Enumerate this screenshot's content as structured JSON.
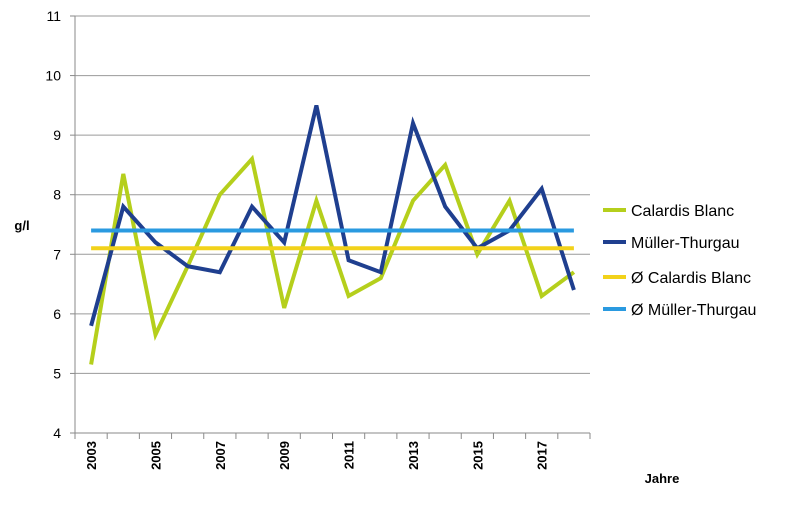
{
  "chart_data": {
    "type": "line",
    "title": "",
    "xlabel": "Jahre",
    "ylabel": "g/l",
    "ylim": [
      4,
      11
    ],
    "yticks": [
      4,
      5,
      6,
      7,
      8,
      9,
      10,
      11
    ],
    "x": [
      2003,
      2004,
      2005,
      2006,
      2007,
      2008,
      2009,
      2010,
      2011,
      2012,
      2013,
      2014,
      2015,
      2016,
      2017,
      2018
    ],
    "xtick_labels": [
      "2003",
      "2005",
      "2007",
      "2009",
      "2011",
      "2013",
      "2015",
      "2017"
    ],
    "grid": "horizontal",
    "legend_position": "right",
    "series": [
      {
        "name": "Calardis Blanc",
        "color": "#b5cf1c",
        "values": [
          5.15,
          8.35,
          5.65,
          6.8,
          8.0,
          8.6,
          6.1,
          7.9,
          6.3,
          6.6,
          7.9,
          8.5,
          7.0,
          7.9,
          6.3,
          6.7
        ]
      },
      {
        "name": "Müller-Thurgau",
        "color": "#1f3f8f",
        "values": [
          5.8,
          7.8,
          7.2,
          6.8,
          6.7,
          7.8,
          7.2,
          9.5,
          6.9,
          6.7,
          9.2,
          7.8,
          7.1,
          7.4,
          8.1,
          6.4
        ]
      },
      {
        "name": "Ø Calardis Blanc",
        "color": "#f2d21a",
        "values": [
          7.1,
          7.1,
          7.1,
          7.1,
          7.1,
          7.1,
          7.1,
          7.1,
          7.1,
          7.1,
          7.1,
          7.1,
          7.1,
          7.1,
          7.1,
          7.1
        ]
      },
      {
        "name": "Ø Müller-Thurgau",
        "color": "#2a9ae0",
        "values": [
          7.4,
          7.4,
          7.4,
          7.4,
          7.4,
          7.4,
          7.4,
          7.4,
          7.4,
          7.4,
          7.4,
          7.4,
          7.4,
          7.4,
          7.4,
          7.4
        ]
      }
    ]
  }
}
